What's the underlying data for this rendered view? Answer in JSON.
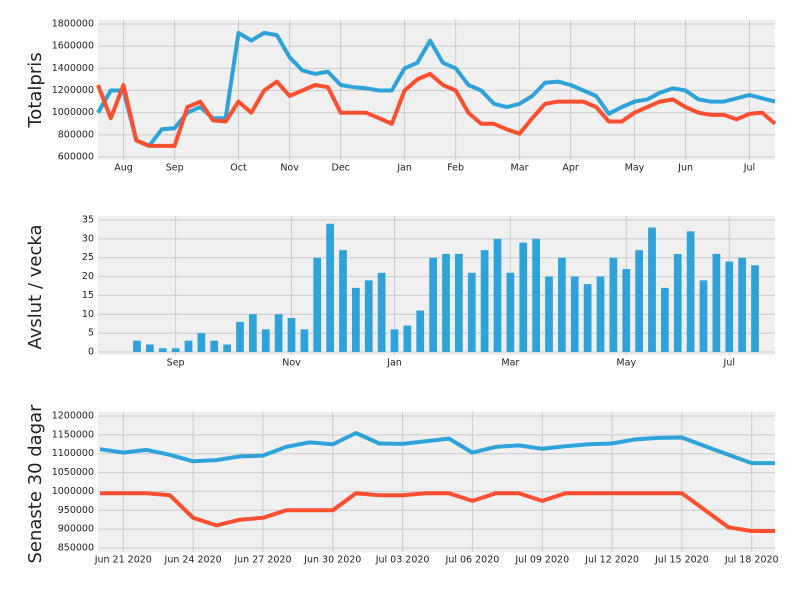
{
  "chart_data": [
    {
      "type": "line",
      "y_label": "Totalpris",
      "categories": [
        null,
        null,
        "Aug",
        null,
        null,
        null,
        "Sep",
        null,
        null,
        null,
        null,
        "Oct",
        null,
        null,
        null,
        "Nov",
        null,
        null,
        null,
        "Dec",
        null,
        null,
        null,
        null,
        "Jan",
        null,
        null,
        null,
        "Feb",
        null,
        null,
        null,
        null,
        "Mar",
        null,
        null,
        null,
        "Apr",
        null,
        null,
        null,
        null,
        "May",
        null,
        null,
        null,
        "Jun",
        null,
        null,
        null,
        null,
        "Jul",
        null,
        null
      ],
      "series": [
        {
          "color": "#30a2da",
          "values": [
            1000000,
            1200000,
            1200000,
            750000,
            700000,
            850000,
            860000,
            1000000,
            1050000,
            950000,
            950000,
            1720000,
            1650000,
            1720000,
            1700000,
            1500000,
            1380000,
            1350000,
            1370000,
            1250000,
            1230000,
            1220000,
            1200000,
            1200000,
            1400000,
            1450000,
            1650000,
            1450000,
            1400000,
            1250000,
            1200000,
            1080000,
            1050000,
            1080000,
            1150000,
            1270000,
            1280000,
            1250000,
            1200000,
            1150000,
            990000,
            1050000,
            1100000,
            1120000,
            1180000,
            1220000,
            1200000,
            1120000,
            1100000,
            1100000,
            1130000,
            1160000,
            1130000,
            1100000
          ]
        },
        {
          "color": "#fc4f30",
          "values": [
            1250000,
            950000,
            1250000,
            750000,
            700000,
            700000,
            700000,
            1050000,
            1100000,
            930000,
            920000,
            1100000,
            1000000,
            1200000,
            1280000,
            1150000,
            1200000,
            1250000,
            1230000,
            1000000,
            1000000,
            1000000,
            950000,
            900000,
            1200000,
            1300000,
            1350000,
            1250000,
            1200000,
            1000000,
            900000,
            900000,
            850000,
            810000,
            950000,
            1080000,
            1100000,
            1100000,
            1100000,
            1050000,
            920000,
            920000,
            1000000,
            1050000,
            1100000,
            1120000,
            1050000,
            1000000,
            980000,
            980000,
            940000,
            990000,
            1000000,
            900000
          ]
        }
      ],
      "ylim": [
        600000,
        1800000
      ],
      "yticks": [
        600000,
        800000,
        1000000,
        1200000,
        1400000,
        1600000,
        1800000
      ],
      "grid": true
    },
    {
      "type": "bar",
      "y_label": "Avslut / vecka",
      "categories": [
        null,
        null,
        null,
        "Sep",
        null,
        null,
        null,
        null,
        null,
        null,
        null,
        null,
        "Nov",
        null,
        null,
        null,
        null,
        null,
        null,
        null,
        "Jan",
        null,
        null,
        null,
        null,
        null,
        null,
        null,
        null,
        "Mar",
        null,
        null,
        null,
        null,
        null,
        null,
        null,
        null,
        "May",
        null,
        null,
        null,
        null,
        null,
        null,
        null,
        "Jul",
        null,
        null
      ],
      "values": [
        3,
        2,
        1,
        1,
        3,
        5,
        3,
        2,
        8,
        10,
        6,
        10,
        9,
        6,
        25,
        34,
        27,
        17,
        19,
        21,
        6,
        7,
        11,
        25,
        26,
        26,
        21,
        27,
        30,
        21,
        29,
        30,
        20,
        25,
        20,
        18,
        20,
        25,
        22,
        27,
        33,
        17,
        26,
        32,
        19,
        26,
        24,
        25,
        23
      ],
      "color": "#30a2da",
      "ylim": [
        0,
        35
      ],
      "yticks": [
        0,
        5,
        10,
        15,
        20,
        25,
        30,
        35
      ],
      "grid": true
    },
    {
      "type": "line",
      "y_label": "Senaste 30 dagar",
      "categories": [
        null,
        "Jun 21 2020",
        null,
        null,
        "Jun 24 2020",
        null,
        null,
        "Jun 27 2020",
        null,
        null,
        "Jun 30 2020",
        null,
        null,
        "Jul 03 2020",
        null,
        null,
        "Jul 06 2020",
        null,
        null,
        "Jul 09 2020",
        null,
        null,
        "Jul 12 2020",
        null,
        null,
        "Jul 15 2020",
        null,
        null,
        "Jul 18 2020",
        null
      ],
      "series": [
        {
          "color": "#30a2da",
          "values": [
            1112000,
            1103000,
            1110000,
            1097000,
            1080000,
            1083000,
            1093000,
            1095000,
            1118000,
            1130000,
            1125000,
            1155000,
            1127000,
            1126000,
            1133000,
            1140000,
            1103000,
            1118000,
            1122000,
            1113000,
            1120000,
            1125000,
            1127000,
            1138000,
            1142000,
            1143000,
            1120000,
            1097000,
            1075000,
            1075000
          ]
        },
        {
          "color": "#fc4f30",
          "values": [
            995000,
            995000,
            995000,
            990000,
            930000,
            910000,
            925000,
            930000,
            950000,
            950000,
            950000,
            995000,
            990000,
            990000,
            995000,
            995000,
            975000,
            995000,
            995000,
            975000,
            995000,
            995000,
            995000,
            995000,
            995000,
            995000,
            950000,
            905000,
            895000,
            895000
          ]
        }
      ],
      "ylim": [
        850000,
        1200000
      ],
      "yticks": [
        850000,
        900000,
        950000,
        1000000,
        1050000,
        1100000,
        1150000,
        1200000
      ],
      "grid": true
    }
  ]
}
